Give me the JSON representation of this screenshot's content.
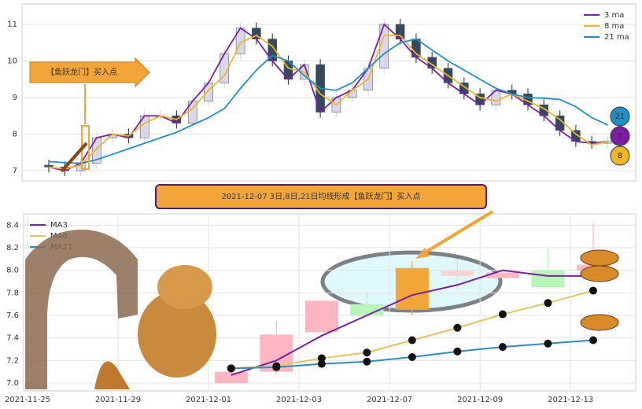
{
  "chart_data": [
    {
      "type": "candlestick",
      "annotation": "【鱼跃龙门】买入点",
      "ylim": [
        6.72,
        11.56
      ],
      "yticks": [
        7,
        8,
        9,
        10,
        11
      ],
      "grid": true,
      "legend": "upper right",
      "candles": {
        "open": [
          7.15,
          7.1,
          7.0,
          7.2,
          7.9,
          8.0,
          7.9,
          8.5,
          8.5,
          8.3,
          8.9,
          9.4,
          10.2,
          10.9,
          10.6,
          10.0,
          9.5,
          9.9,
          8.6,
          9.0,
          9.2,
          9.8,
          11.0,
          10.6,
          10.1,
          9.8,
          9.4,
          9.1,
          8.8,
          9.2,
          9.1,
          8.8,
          8.5,
          8.1,
          7.8,
          7.75
        ],
        "high": [
          7.3,
          7.25,
          7.35,
          8.05,
          8.15,
          8.15,
          8.65,
          8.65,
          8.65,
          9.05,
          9.55,
          10.35,
          11.05,
          11.05,
          10.75,
          10.15,
          10.05,
          10.05,
          9.15,
          9.35,
          9.95,
          11.15,
          11.15,
          10.75,
          10.25,
          9.95,
          9.55,
          9.25,
          9.35,
          9.35,
          9.25,
          8.95,
          8.65,
          8.25,
          7.95,
          7.95
        ],
        "low": [
          6.95,
          6.85,
          6.85,
          7.05,
          7.75,
          7.75,
          7.75,
          8.35,
          8.15,
          8.15,
          8.75,
          9.25,
          10.05,
          10.45,
          9.85,
          9.35,
          9.35,
          8.45,
          8.45,
          8.85,
          9.05,
          9.65,
          10.45,
          9.95,
          9.65,
          9.25,
          8.95,
          8.65,
          8.65,
          8.95,
          8.65,
          8.35,
          7.95,
          7.65,
          7.6,
          7.6
        ],
        "close": [
          7.1,
          7.0,
          7.2,
          7.9,
          8.0,
          7.9,
          8.5,
          8.5,
          8.3,
          8.9,
          9.4,
          10.2,
          10.9,
          10.6,
          10.0,
          9.5,
          9.9,
          8.6,
          9.0,
          9.2,
          9.8,
          11.0,
          10.6,
          10.1,
          9.8,
          9.4,
          9.1,
          8.8,
          9.2,
          9.1,
          8.8,
          8.5,
          8.1,
          7.8,
          7.75,
          7.8
        ],
        "up_color": "#dcd6ea",
        "down_color": "#34495e"
      },
      "series": [
        {
          "name": "3 ma",
          "color": "#7b1fa2",
          "values": [
            7.1,
            7.0,
            7.2,
            7.9,
            8.0,
            7.9,
            8.5,
            8.5,
            8.3,
            8.9,
            9.4,
            10.2,
            10.9,
            10.6,
            10.0,
            9.5,
            9.9,
            8.6,
            9.0,
            9.2,
            9.8,
            11.0,
            10.6,
            10.1,
            9.8,
            9.4,
            9.1,
            8.8,
            9.2,
            9.1,
            8.8,
            8.5,
            8.1,
            7.8,
            7.75,
            7.8
          ]
        },
        {
          "name": "8 ma",
          "color": "#f0b429",
          "values": [
            7.1,
            7.05,
            7.15,
            7.6,
            8.0,
            7.95,
            8.3,
            8.5,
            8.4,
            8.7,
            9.2,
            9.6,
            10.5,
            10.7,
            10.4,
            9.8,
            9.7,
            9.1,
            8.8,
            9.2,
            9.5,
            10.7,
            10.7,
            10.2,
            9.9,
            9.6,
            9.3,
            9.0,
            8.9,
            9.1,
            8.9,
            8.7,
            8.4,
            8.0,
            7.7,
            7.8
          ]
        },
        {
          "name": "21 ma",
          "color": "#1f8fc8",
          "values": [
            7.25,
            7.22,
            7.2,
            7.3,
            7.45,
            7.6,
            7.75,
            7.9,
            8.05,
            8.25,
            8.45,
            8.7,
            9.25,
            9.75,
            10.15,
            10.0,
            9.6,
            9.25,
            9.2,
            9.4,
            9.8,
            10.2,
            10.5,
            10.6,
            10.3,
            10.0,
            9.75,
            9.5,
            9.25,
            9.1,
            9.0,
            8.98,
            8.95,
            8.75,
            8.45,
            8.25
          ]
        }
      ],
      "badges": [
        {
          "label": "21",
          "color": "#1f8fc8"
        },
        {
          "label": "3",
          "color": "#7b1fa2"
        },
        {
          "label": "8",
          "color": "#f0b429"
        }
      ]
    },
    {
      "type": "candlestick",
      "title": "2021-12-07 3日,8日,21日均线形成【鱼跃龙门】买入点",
      "x": [
        4.5,
        5.5,
        6.5,
        7.5,
        8.5,
        9.5,
        10.5,
        11.5,
        12.5
      ],
      "xlim": [
        -0.087,
        13.44
      ],
      "xticks": [
        {
          "value": 0,
          "label": "2021-11-25"
        },
        {
          "value": 2,
          "label": "2021-11-29"
        },
        {
          "value": 4,
          "label": "2021-12-01"
        },
        {
          "value": 6,
          "label": "2021-12-03"
        },
        {
          "value": 8,
          "label": "2021-12-07"
        },
        {
          "value": 10,
          "label": "2021-12-09"
        },
        {
          "value": 12,
          "label": "2021-12-13"
        }
      ],
      "ylim": [
        6.93,
        8.5
      ],
      "yticks": [
        {
          "value": 7,
          "label": "7.0"
        },
        7.2,
        7.4,
        7.6,
        7.8,
        {
          "value": 8,
          "label": "8.0"
        },
        8.2,
        8.4
      ],
      "grid": true,
      "legend": "upper left",
      "markers": true,
      "candles": {
        "open": [
          7.0,
          7.1,
          7.45,
          7.7,
          7.65,
          7.95,
          7.93,
          8.0,
          8.0
        ],
        "high": [
          7.1,
          7.55,
          7.73,
          7.8,
          8.08,
          8.1,
          7.98,
          8.2,
          8.42
        ],
        "low": [
          7.0,
          7.08,
          7.45,
          7.6,
          7.6,
          7.82,
          7.93,
          7.85,
          8.0
        ],
        "close": [
          7.1,
          7.43,
          7.73,
          7.6,
          8.02,
          8.0,
          7.98,
          7.85,
          8.05
        ],
        "colors": [
          "#ffb6c1",
          "#ffb6c1",
          "#ffb6c1",
          "#b8f5b8",
          "#f4a53a",
          "#f7d3d8",
          "#ffb6c1",
          "#b8f5b8",
          "#ffb6c1"
        ]
      },
      "series": [
        {
          "name": "MA3",
          "color": "#7b1fa2",
          "values": [
            7.07,
            7.2,
            7.42,
            7.6,
            7.78,
            7.87,
            8.0,
            7.95,
            7.95
          ]
        },
        {
          "name": "MA8",
          "color": "#e8c35a",
          "values": [
            7.13,
            7.15,
            7.22,
            7.27,
            7.38,
            7.49,
            7.61,
            7.71,
            7.82
          ]
        },
        {
          "name": "MA21",
          "color": "#2a8fc0",
          "values": [
            7.13,
            7.14,
            7.17,
            7.19,
            7.23,
            7.28,
            7.32,
            7.35,
            7.38
          ]
        }
      ]
    }
  ]
}
